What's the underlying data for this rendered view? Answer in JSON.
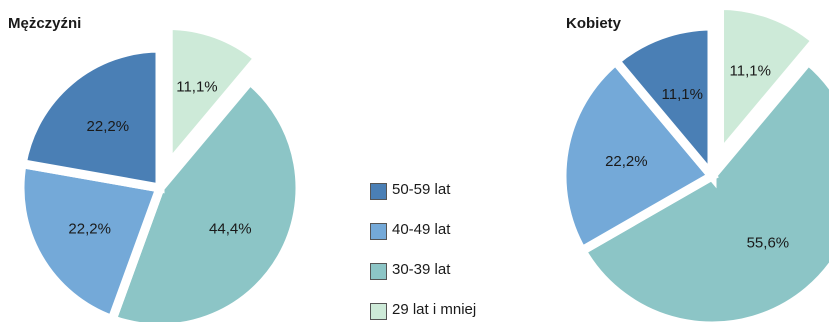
{
  "legend": {
    "items": [
      {
        "label": "50-59 lat",
        "color": "#4a7fb5"
      },
      {
        "label": "40-49 lat",
        "color": "#74a9d8"
      },
      {
        "label": "30-39 lat",
        "color": "#8cc5c6"
      },
      {
        "label": "29 lat i mniej",
        "color": "#cdead8"
      }
    ]
  },
  "chart_data": [
    {
      "type": "pie",
      "title": "Mężczyźni",
      "slices": [
        {
          "category": "29 lat i mniej",
          "value": 11.1,
          "label": "11,1%",
          "color": "#cdead8",
          "exploded": true
        },
        {
          "category": "30-39 lat",
          "value": 44.4,
          "label": "44,4%",
          "color": "#8cc5c6",
          "exploded": false
        },
        {
          "category": "40-49 lat",
          "value": 22.2,
          "label": "22,2%",
          "color": "#74a9d8",
          "exploded": false
        },
        {
          "category": "50-59 lat",
          "value": 22.2,
          "label": "22,2%",
          "color": "#4a7fb5",
          "exploded": false
        }
      ]
    },
    {
      "type": "pie",
      "title": "Kobiety",
      "slices": [
        {
          "category": "29 lat i mniej",
          "value": 11.1,
          "label": "11,1%",
          "color": "#cdead8",
          "exploded": true
        },
        {
          "category": "30-39 lat",
          "value": 55.6,
          "label": "55,6%",
          "color": "#8cc5c6",
          "exploded": false
        },
        {
          "category": "40-49 lat",
          "value": 22.2,
          "label": "22,2%",
          "color": "#74a9d8",
          "exploded": false
        },
        {
          "category": "50-59 lat",
          "value": 11.1,
          "label": "11,1%",
          "color": "#4a7fb5",
          "exploded": false
        }
      ]
    }
  ]
}
